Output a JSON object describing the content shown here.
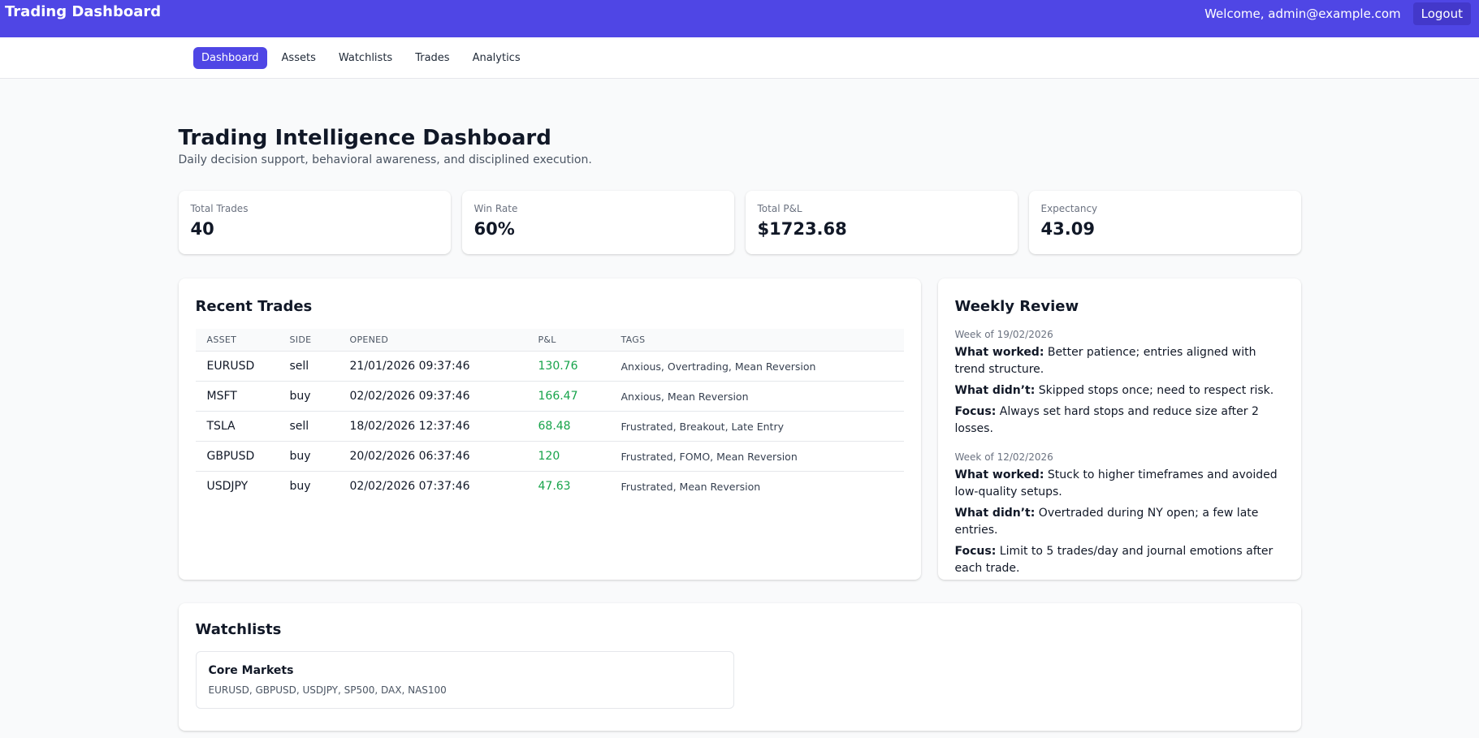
{
  "header": {
    "brand": "Trading Dashboard",
    "welcome": "Welcome, admin@example.com",
    "logout_label": "Logout"
  },
  "nav": {
    "items": [
      {
        "label": "Dashboard",
        "active": true
      },
      {
        "label": "Assets"
      },
      {
        "label": "Watchlists"
      },
      {
        "label": "Trades"
      },
      {
        "label": "Analytics"
      }
    ]
  },
  "page": {
    "title": "Trading Intelligence Dashboard",
    "subtitle": "Daily decision support, behavioral awareness, and disciplined execution."
  },
  "stats": [
    {
      "label": "Total Trades",
      "value": "40"
    },
    {
      "label": "Win Rate",
      "value": "60%"
    },
    {
      "label": "Total P&L",
      "value": "$1723.68"
    },
    {
      "label": "Expectancy",
      "value": "43.09"
    }
  ],
  "recent_trades": {
    "title": "Recent Trades",
    "columns": [
      "ASSET",
      "SIDE",
      "OPENED",
      "P&L",
      "TAGS"
    ],
    "rows": [
      {
        "asset": "EURUSD",
        "side": "sell",
        "opened": "21/01/2026 09:37:46",
        "pnl": "130.76",
        "tags": "Anxious, Overtrading, Mean Reversion"
      },
      {
        "asset": "MSFT",
        "side": "buy",
        "opened": "02/02/2026 09:37:46",
        "pnl": "166.47",
        "tags": "Anxious, Mean Reversion"
      },
      {
        "asset": "TSLA",
        "side": "sell",
        "opened": "18/02/2026 12:37:46",
        "pnl": "68.48",
        "tags": "Frustrated, Breakout, Late Entry"
      },
      {
        "asset": "GBPUSD",
        "side": "buy",
        "opened": "20/02/2026 06:37:46",
        "pnl": "120",
        "tags": "Frustrated, FOMO, Mean Reversion"
      },
      {
        "asset": "USDJPY",
        "side": "buy",
        "opened": "02/02/2026 07:37:46",
        "pnl": "47.63",
        "tags": "Frustrated, Mean Reversion"
      }
    ]
  },
  "weekly_review": {
    "title": "Weekly Review",
    "weeks": [
      {
        "label": "Week of 19/02/2026",
        "worked_label": "What worked:",
        "worked": "Better patience; entries aligned with trend structure.",
        "didnt_label": "What didn’t:",
        "didnt": "Skipped stops once; need to respect risk.",
        "focus_label": "Focus:",
        "focus": "Always set hard stops and reduce size after 2 losses."
      },
      {
        "label": "Week of 12/02/2026",
        "worked_label": "What worked:",
        "worked": "Stuck to higher timeframes and avoided low-quality setups.",
        "didnt_label": "What didn’t:",
        "didnt": "Overtraded during NY open; a few late entries.",
        "focus_label": "Focus:",
        "focus": "Limit to 5 trades/day and journal emotions after each trade."
      }
    ]
  },
  "watchlists": {
    "title": "Watchlists",
    "items": [
      {
        "name": "Core Markets",
        "assets": "EURUSD, GBPUSD, USDJPY, SP500, DAX, NAS100"
      }
    ]
  },
  "colors": {
    "accent": "#4f46e5",
    "positive": "#16a34a"
  }
}
